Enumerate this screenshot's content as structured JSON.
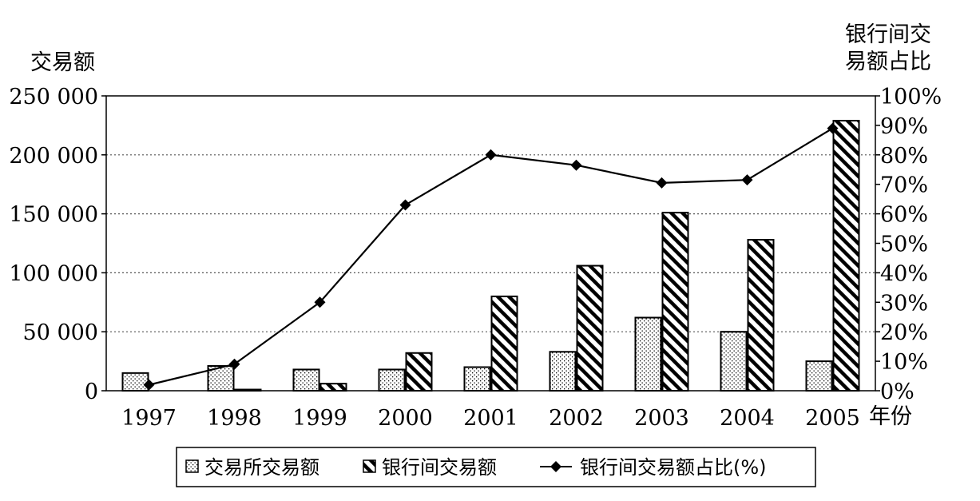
{
  "chart_data": {
    "type": "bar",
    "categories": [
      "1997",
      "1998",
      "1999",
      "2000",
      "2001",
      "2002",
      "2003",
      "2004",
      "2005"
    ],
    "series": [
      {
        "name": "交易所交易额",
        "kind": "bar",
        "axis": "left",
        "pattern": "dots",
        "values": [
          15000,
          21000,
          18000,
          18000,
          20000,
          33000,
          62000,
          50000,
          25000
        ]
      },
      {
        "name": "银行间交易额",
        "kind": "bar",
        "axis": "left",
        "pattern": "diagonal-hatch",
        "values": [
          0,
          1000,
          6000,
          32000,
          80000,
          106000,
          151000,
          128000,
          229000
        ]
      },
      {
        "name": "银行间交易额占比(%)",
        "kind": "line",
        "axis": "right",
        "marker": "diamond",
        "values": [
          2,
          9,
          30,
          63,
          80,
          76.5,
          70.5,
          71.5,
          89
        ]
      }
    ],
    "left_axis": {
      "label": "交易额",
      "range": [
        0,
        250000
      ],
      "ticks": [
        0,
        50000,
        100000,
        150000,
        200000,
        250000
      ],
      "tick_labels": [
        "0",
        "50 000",
        "100 000",
        "150 000",
        "200 000",
        "250 000"
      ]
    },
    "right_axis": {
      "label_lines": [
        "银行间交",
        "易额占比"
      ],
      "range": [
        0,
        100
      ],
      "ticks": [
        0,
        10,
        20,
        30,
        40,
        50,
        60,
        70,
        80,
        90,
        100
      ],
      "tick_labels": [
        "0%",
        "10%",
        "20%",
        "30%",
        "40%",
        "50%",
        "60%",
        "70%",
        "80%",
        "90%",
        "100%"
      ]
    },
    "xlabel": "年份",
    "grid": "horizontal-dotted",
    "legend": [
      "交易所交易额",
      "银行间交易额",
      "银行间交易额占比(%)"
    ],
    "legend_position": "bottom"
  }
}
